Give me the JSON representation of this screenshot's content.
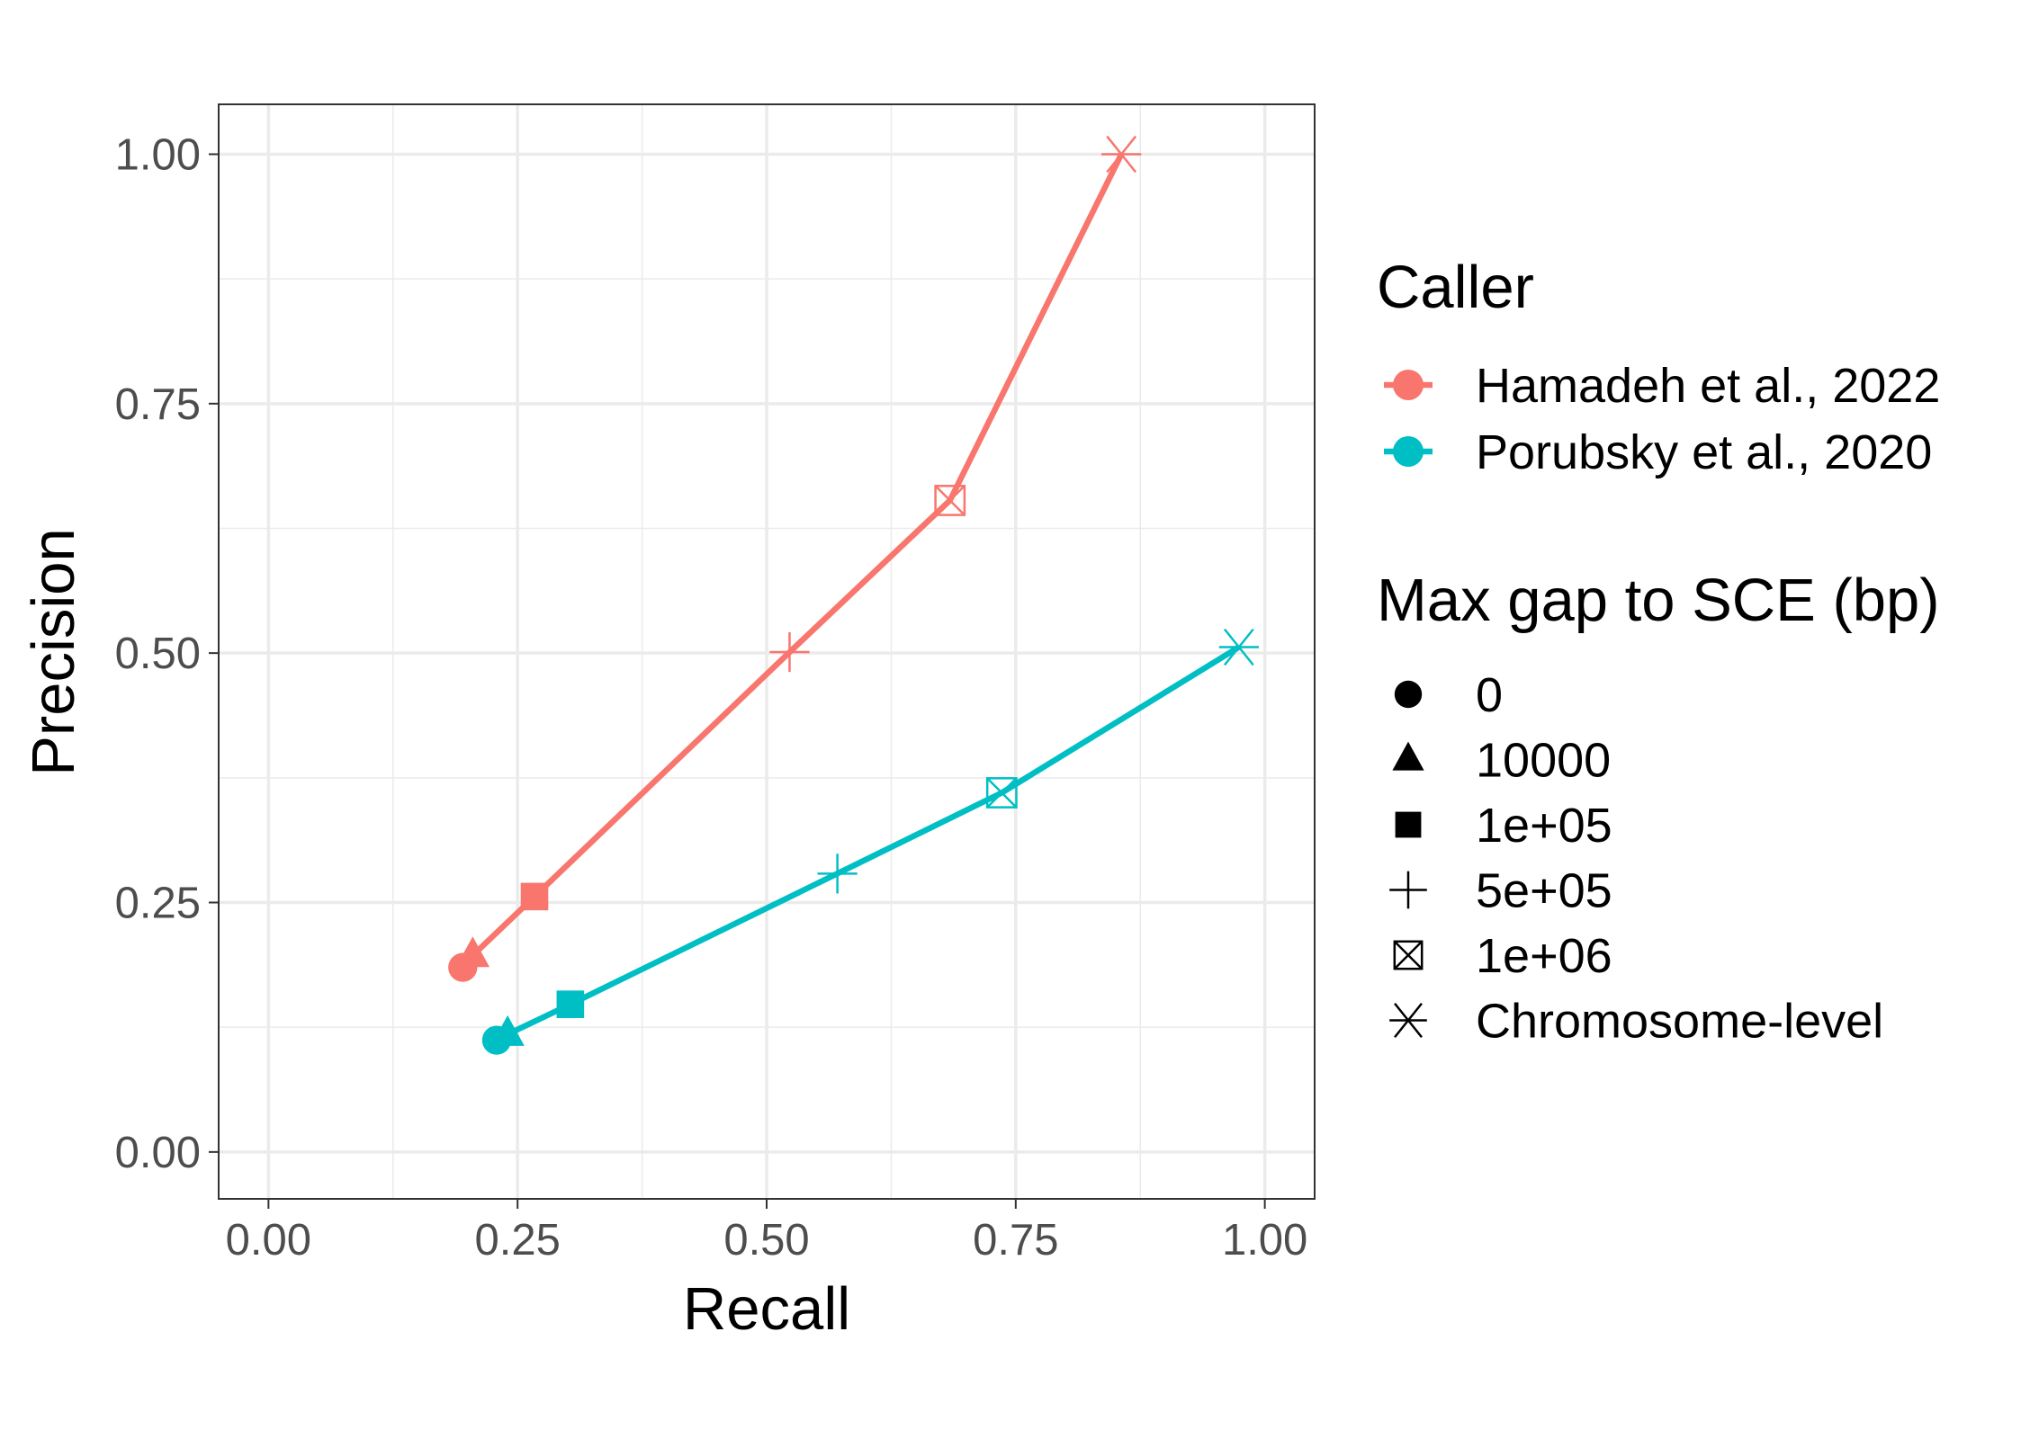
{
  "chart_data": {
    "type": "line",
    "title": "",
    "xlabel": "Recall",
    "ylabel": "Precision",
    "xlim": [
      -0.05,
      1.05
    ],
    "ylim": [
      -0.047,
      1.05
    ],
    "x_ticks": [
      "0.00",
      "0.25",
      "0.50",
      "0.75",
      "1.00"
    ],
    "y_ticks": [
      "0.00",
      "0.25",
      "0.50",
      "0.75",
      "1.00"
    ],
    "grid": true,
    "legend_position": "right",
    "shape_levels": [
      "0",
      "10000",
      "1e+05",
      "5e+05",
      "1e+06",
      "Chromosome-level"
    ],
    "series": [
      {
        "name": "Hamadeh et al., 2022",
        "color": "#F8766D",
        "points": [
          {
            "x": 0.195,
            "y": 0.185,
            "shape": "0"
          },
          {
            "x": 0.205,
            "y": 0.197,
            "shape": "10000"
          },
          {
            "x": 0.267,
            "y": 0.256,
            "shape": "1e+05"
          },
          {
            "x": 0.523,
            "y": 0.501,
            "shape": "5e+05"
          },
          {
            "x": 0.684,
            "y": 0.653,
            "shape": "1e+06"
          },
          {
            "x": 0.856,
            "y": 1.0,
            "shape": "Chromosome-level"
          }
        ]
      },
      {
        "name": "Porubsky et al., 2020",
        "color": "#00BFC4",
        "points": [
          {
            "x": 0.229,
            "y": 0.112,
            "shape": "0"
          },
          {
            "x": 0.24,
            "y": 0.118,
            "shape": "10000"
          },
          {
            "x": 0.303,
            "y": 0.148,
            "shape": "1e+05"
          },
          {
            "x": 0.571,
            "y": 0.279,
            "shape": "5e+05"
          },
          {
            "x": 0.736,
            "y": 0.36,
            "shape": "1e+06"
          },
          {
            "x": 0.974,
            "y": 0.506,
            "shape": "Chromosome-level"
          }
        ]
      }
    ]
  },
  "legend": {
    "color_title": "Caller",
    "shape_title": "Max gap to SCE (bp)",
    "color_items": [
      "Hamadeh et al., 2022",
      "Porubsky et al., 2020"
    ],
    "shape_items": [
      "0",
      "10000",
      "1e+05",
      "5e+05",
      "1e+06",
      "Chromosome-level"
    ]
  }
}
